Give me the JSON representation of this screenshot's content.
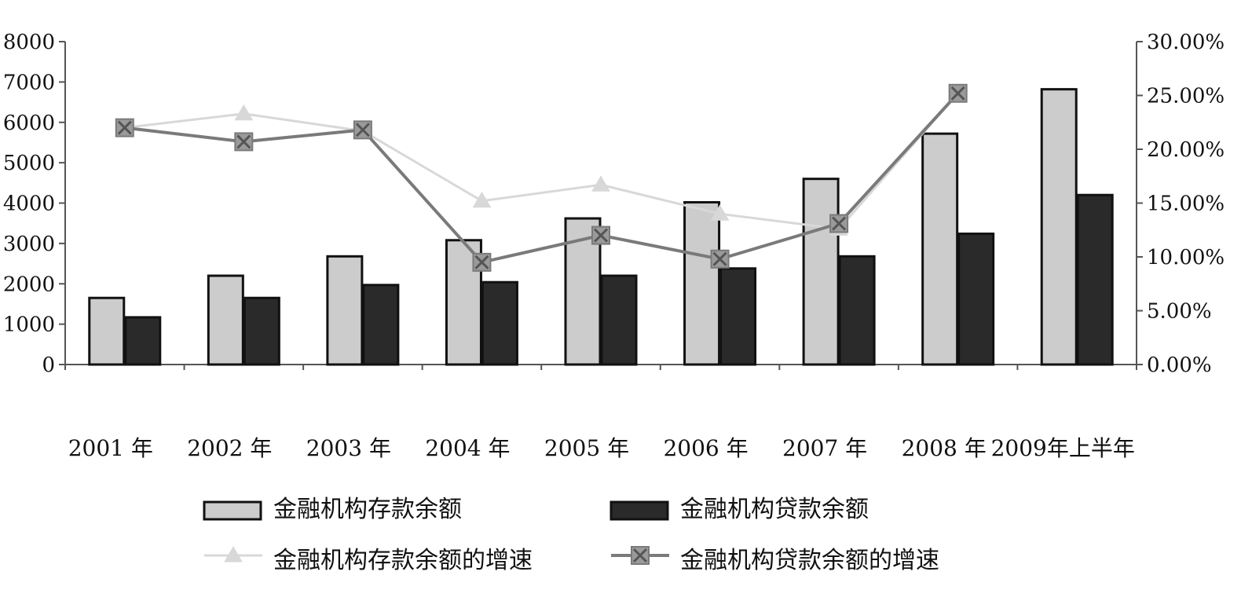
{
  "chart_data": {
    "type": "bar",
    "categories": [
      "2001 年",
      "2002 年",
      "2003 年",
      "2004 年",
      "2005 年",
      "2006 年",
      "2007 年",
      "2008 年",
      "2009年上半年"
    ],
    "left_axis": {
      "ylim": [
        0,
        8000
      ],
      "ticks": [
        "0",
        "1000",
        "2000",
        "3000",
        "4000",
        "5000",
        "6000",
        "7000",
        "8000"
      ]
    },
    "right_axis": {
      "ylim": [
        0,
        30
      ],
      "ticks": [
        "0.00%",
        "5.00%",
        "10.00%",
        "15.00%",
        "20.00%",
        "25.00%",
        "30.00%"
      ]
    },
    "series": [
      {
        "name": "金融机构存款余额",
        "type": "bar",
        "axis": "left",
        "color": "#cccccc",
        "values": [
          1650,
          2200,
          2680,
          3080,
          3620,
          4020,
          4600,
          5720,
          6820
        ]
      },
      {
        "name": "金融机构贷款余额",
        "type": "bar",
        "axis": "left",
        "color": "#2a2a2a",
        "values": [
          1170,
          1650,
          1970,
          2040,
          2200,
          2380,
          2680,
          3240,
          4200
        ]
      },
      {
        "name": "金融机构存款余额的增速",
        "type": "line",
        "axis": "right",
        "marker": "triangle",
        "color": "#d8d8d8",
        "values": [
          22.0,
          23.3,
          21.7,
          15.2,
          16.7,
          14.0,
          12.6,
          25.2,
          null
        ]
      },
      {
        "name": "金融机构贷款余额的增速",
        "type": "line",
        "axis": "right",
        "marker": "x-square",
        "color": "#7a7a7a",
        "values": [
          22.0,
          20.7,
          21.8,
          9.5,
          12.0,
          9.8,
          13.1,
          25.2,
          null
        ]
      }
    ],
    "legend_position": "bottom",
    "grid": false
  }
}
